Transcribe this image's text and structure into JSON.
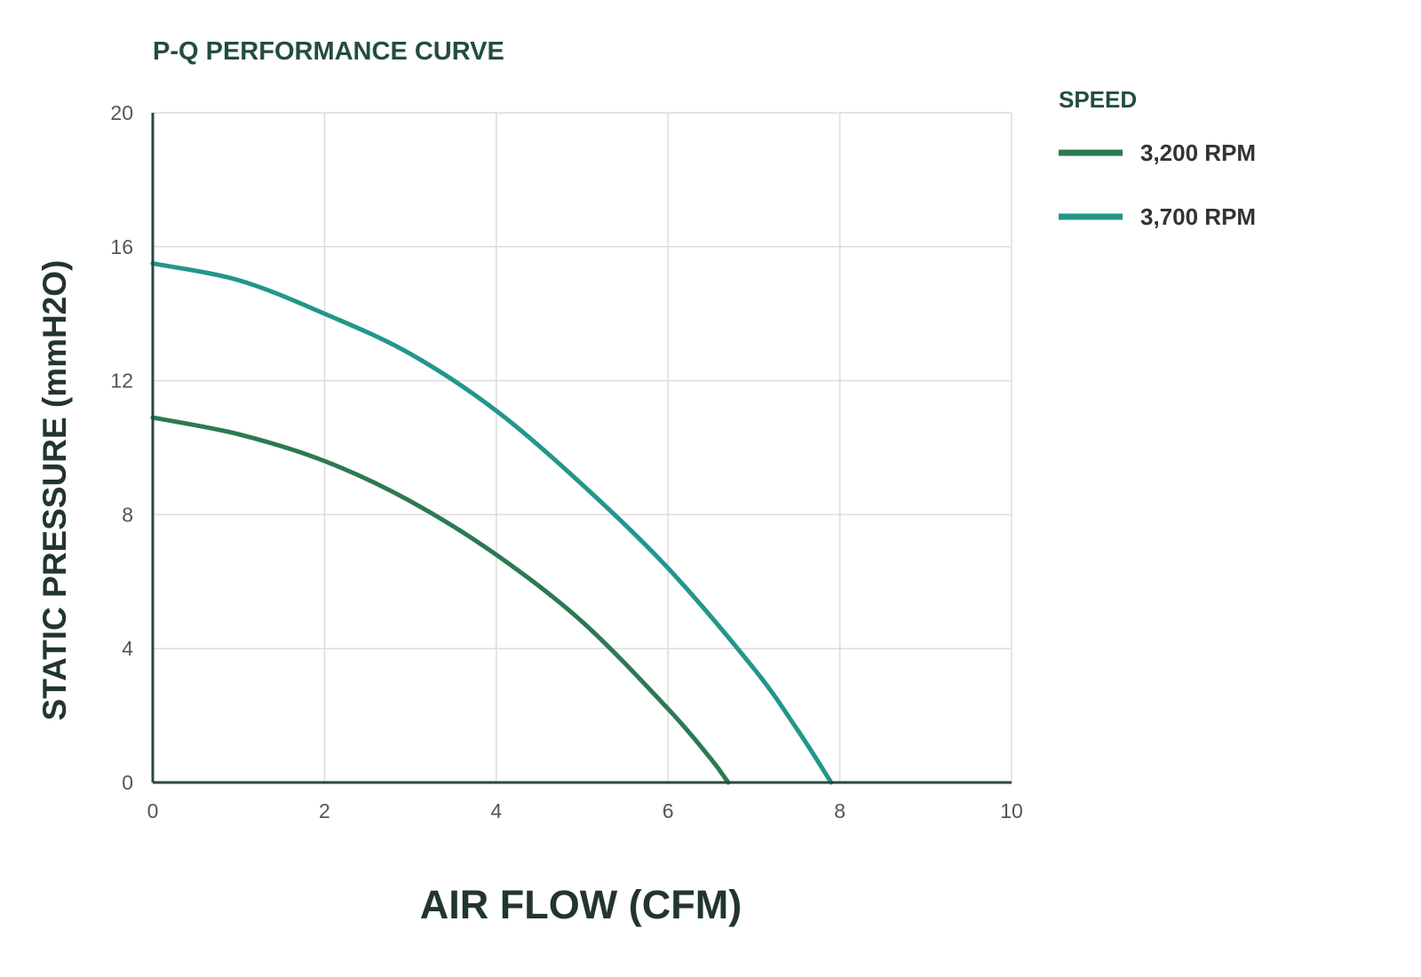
{
  "chart_data": {
    "type": "line",
    "title": "P-Q PERFORMANCE CURVE",
    "xlabel": "AIR FLOW (CFM)",
    "ylabel": "STATIC PRESSURE (mmH2O)",
    "xlim": [
      0,
      10
    ],
    "ylim": [
      0,
      20
    ],
    "x_ticks": [
      "0",
      "2",
      "4",
      "6",
      "8",
      "10"
    ],
    "y_ticks": [
      "0",
      "4",
      "8",
      "12",
      "16",
      "20"
    ],
    "grid": true,
    "legend": {
      "title": "SPEED",
      "position": "right"
    },
    "series": [
      {
        "name": "3,200 RPM",
        "color": "#2b7a52",
        "points": [
          [
            0,
            10.9
          ],
          [
            1,
            10.4
          ],
          [
            2,
            9.6
          ],
          [
            3,
            8.4
          ],
          [
            4,
            6.8
          ],
          [
            5,
            4.8
          ],
          [
            6,
            2.2
          ],
          [
            6.5,
            0.7
          ],
          [
            6.7,
            0
          ]
        ]
      },
      {
        "name": "3,700 RPM",
        "color": "#23968a",
        "points": [
          [
            0,
            15.5
          ],
          [
            1,
            15.0
          ],
          [
            2,
            14.0
          ],
          [
            3,
            12.8
          ],
          [
            4,
            11.1
          ],
          [
            5,
            8.9
          ],
          [
            6,
            6.4
          ],
          [
            7,
            3.4
          ],
          [
            7.5,
            1.6
          ],
          [
            7.9,
            0
          ]
        ]
      }
    ]
  }
}
